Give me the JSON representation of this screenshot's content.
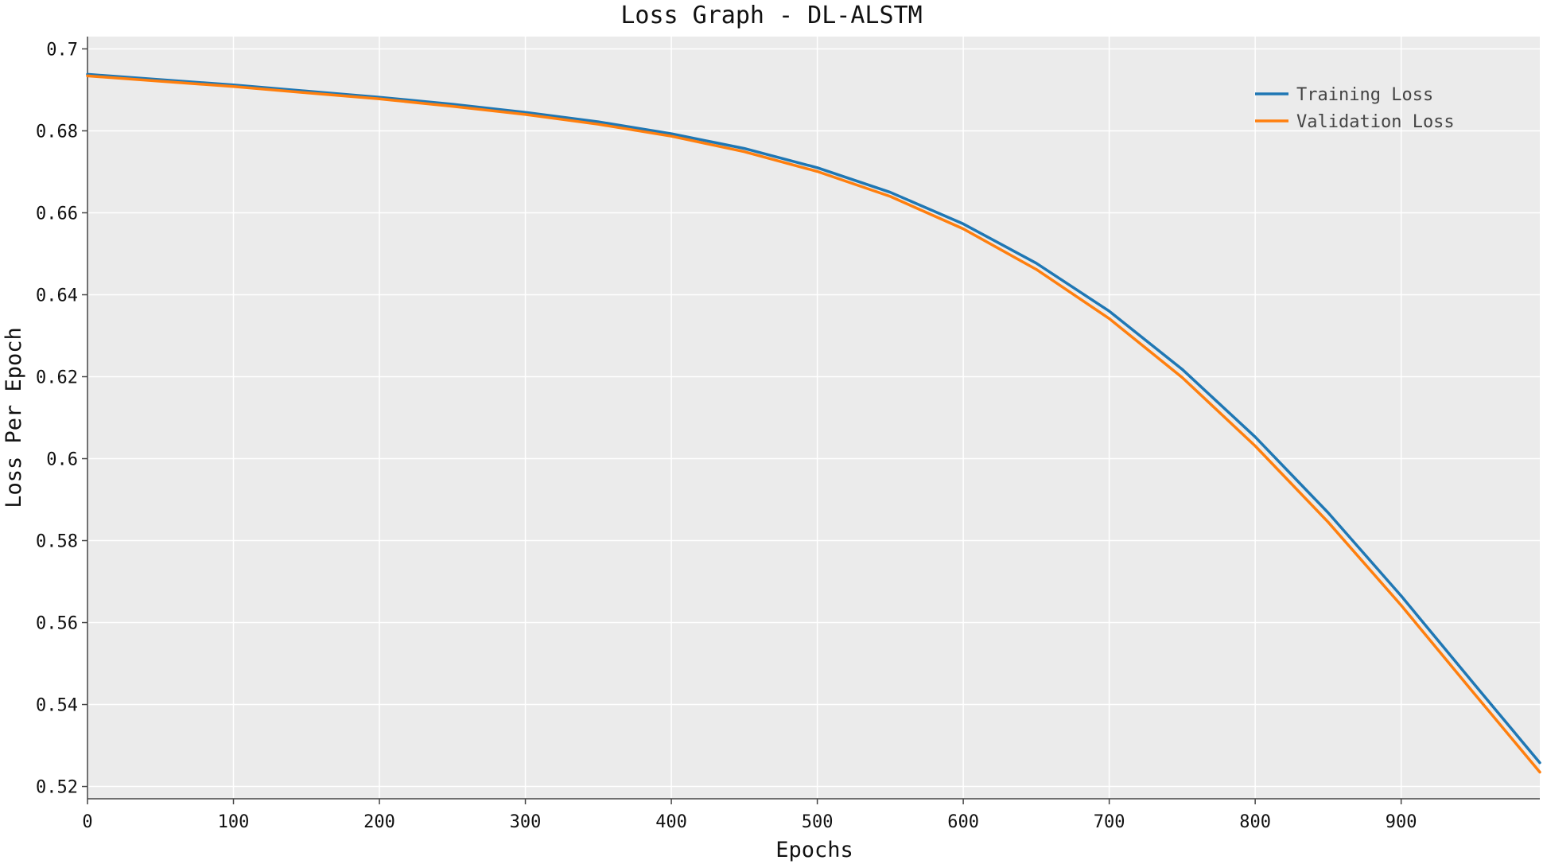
{
  "chart_data": {
    "type": "line",
    "title": "Loss Graph - DL-ALSTM",
    "xlabel": "Epochs",
    "ylabel": "Loss Per Epoch",
    "xlim": [
      0,
      995
    ],
    "ylim": [
      0.517,
      0.703
    ],
    "xticks": [
      0,
      100,
      200,
      300,
      400,
      500,
      600,
      700,
      800,
      900
    ],
    "yticks": [
      0.52,
      0.54,
      0.56,
      0.58,
      0.6,
      0.62,
      0.64,
      0.66,
      0.68,
      0.7
    ],
    "ytick_labels": [
      "0.52",
      "0.54",
      "0.56",
      "0.58",
      "0.6",
      "0.62",
      "0.64",
      "0.66",
      "0.68",
      "0.7"
    ],
    "grid": true,
    "legend_position": "top-right",
    "x": [
      0,
      50,
      100,
      150,
      200,
      250,
      300,
      350,
      400,
      450,
      500,
      550,
      600,
      650,
      700,
      750,
      800,
      850,
      900,
      950,
      995
    ],
    "series": [
      {
        "name": "Training Loss",
        "color": "#1f77b4",
        "values": [
          0.6938,
          0.6925,
          0.6912,
          0.6897,
          0.6882,
          0.6865,
          0.6845,
          0.6822,
          0.6793,
          0.6757,
          0.671,
          0.665,
          0.6573,
          0.6477,
          0.636,
          0.6218,
          0.6053,
          0.5868,
          0.5665,
          0.545,
          0.5258
        ]
      },
      {
        "name": "Validation Loss",
        "color": "#ff7f0e",
        "values": [
          0.6934,
          0.6921,
          0.6908,
          0.6893,
          0.6878,
          0.686,
          0.684,
          0.6816,
          0.6787,
          0.6749,
          0.6701,
          0.664,
          0.6561,
          0.6462,
          0.6342,
          0.6198,
          0.6031,
          0.5845,
          0.5642,
          0.5427,
          0.5235
        ]
      }
    ]
  }
}
